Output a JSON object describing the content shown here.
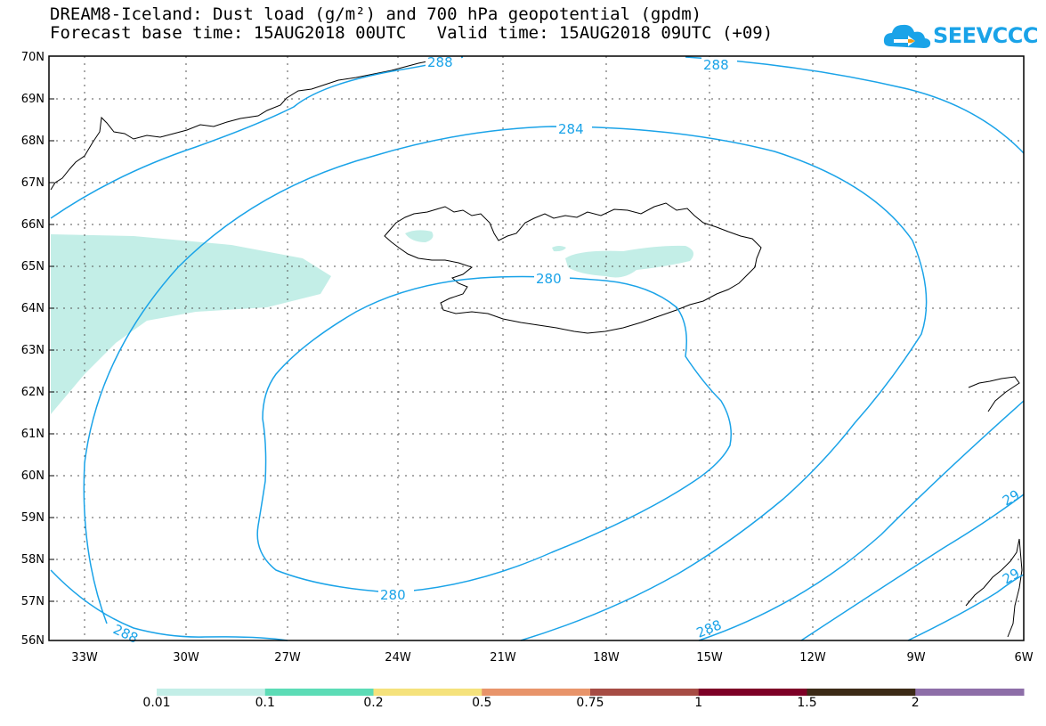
{
  "title": {
    "line1": "DREAM8-Iceland: Dust load (g/m²) and 700 hPa geopotential (gpdm)",
    "line2": "Forecast base time: 15AUG2018 00UTC   Valid time: 15AUG2018 09UTC (+09)"
  },
  "logo": {
    "text": "SEEVCCC",
    "color": "#1aa3e8"
  },
  "axes": {
    "lat_labels": [
      "70N",
      "69N",
      "68N",
      "67N",
      "66N",
      "65N",
      "64N",
      "63N",
      "62N",
      "61N",
      "60N",
      "59N",
      "58N",
      "57N",
      "56N"
    ],
    "lon_labels": [
      "33W",
      "30W",
      "27W",
      "24W",
      "21W",
      "18W",
      "15W",
      "12W",
      "9W",
      "6W"
    ]
  },
  "contours": {
    "color": "#1aa3e8",
    "labels": [
      "288",
      "288",
      "284",
      "280",
      "280",
      "288",
      "288",
      "29",
      "29"
    ]
  },
  "dust": {
    "fill_color": "#c3eee7"
  },
  "colorbar": {
    "colors": [
      "#c3eee7",
      "#5cdcb6",
      "#f5e27c",
      "#e8946a",
      "#a64c44",
      "#7d0026",
      "#3c2a16",
      "#8d6ea8"
    ],
    "labels": [
      "0.01",
      "0.1",
      "0.2",
      "0.5",
      "0.75",
      "1",
      "1.5",
      "2"
    ]
  }
}
